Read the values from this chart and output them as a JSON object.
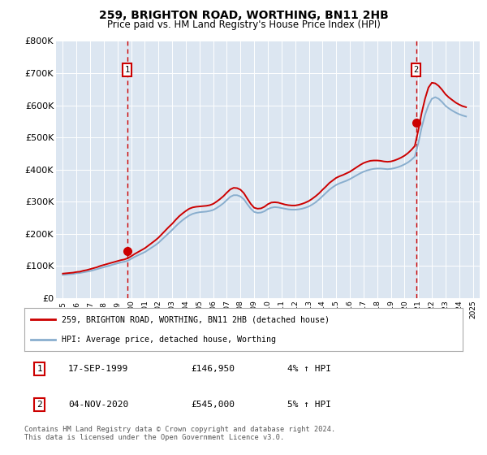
{
  "title": "259, BRIGHTON ROAD, WORTHING, BN11 2HB",
  "subtitle": "Price paid vs. HM Land Registry's House Price Index (HPI)",
  "background_color": "#dce6f1",
  "plot_bg_color": "#dce6f1",
  "red_line_color": "#cc0000",
  "blue_line_color": "#89aece",
  "marker_color": "#cc0000",
  "vline_color": "#cc0000",
  "ylim": [
    0,
    800000
  ],
  "yticks": [
    0,
    100000,
    200000,
    300000,
    400000,
    500000,
    600000,
    700000,
    800000
  ],
  "ytick_labels": [
    "£0",
    "£100K",
    "£200K",
    "£300K",
    "£400K",
    "£500K",
    "£600K",
    "£700K",
    "£800K"
  ],
  "xlim_start": 1994.5,
  "xlim_end": 2025.5,
  "marker1_x": 1999.71,
  "marker1_y": 146950,
  "marker1_label": "1",
  "marker1_date": "17-SEP-1999",
  "marker1_price": "£146,950",
  "marker1_hpi": "4% ↑ HPI",
  "marker2_x": 2020.84,
  "marker2_y": 545000,
  "marker2_label": "2",
  "marker2_date": "04-NOV-2020",
  "marker2_price": "£545,000",
  "marker2_hpi": "5% ↑ HPI",
  "legend_line1": "259, BRIGHTON ROAD, WORTHING, BN11 2HB (detached house)",
  "legend_line2": "HPI: Average price, detached house, Worthing",
  "footnote": "Contains HM Land Registry data © Crown copyright and database right 2024.\nThis data is licensed under the Open Government Licence v3.0.",
  "hpi_years": [
    1995.0,
    1995.25,
    1995.5,
    1995.75,
    1996.0,
    1996.25,
    1996.5,
    1996.75,
    1997.0,
    1997.25,
    1997.5,
    1997.75,
    1998.0,
    1998.25,
    1998.5,
    1998.75,
    1999.0,
    1999.25,
    1999.5,
    1999.75,
    2000.0,
    2000.25,
    2000.5,
    2000.75,
    2001.0,
    2001.25,
    2001.5,
    2001.75,
    2002.0,
    2002.25,
    2002.5,
    2002.75,
    2003.0,
    2003.25,
    2003.5,
    2003.75,
    2004.0,
    2004.25,
    2004.5,
    2004.75,
    2005.0,
    2005.25,
    2005.5,
    2005.75,
    2006.0,
    2006.25,
    2006.5,
    2006.75,
    2007.0,
    2007.25,
    2007.5,
    2007.75,
    2008.0,
    2008.25,
    2008.5,
    2008.75,
    2009.0,
    2009.25,
    2009.5,
    2009.75,
    2010.0,
    2010.25,
    2010.5,
    2010.75,
    2011.0,
    2011.25,
    2011.5,
    2011.75,
    2012.0,
    2012.25,
    2012.5,
    2012.75,
    2013.0,
    2013.25,
    2013.5,
    2013.75,
    2014.0,
    2014.25,
    2014.5,
    2014.75,
    2015.0,
    2015.25,
    2015.5,
    2015.75,
    2016.0,
    2016.25,
    2016.5,
    2016.75,
    2017.0,
    2017.25,
    2017.5,
    2017.75,
    2018.0,
    2018.25,
    2018.5,
    2018.75,
    2019.0,
    2019.25,
    2019.5,
    2019.75,
    2020.0,
    2020.25,
    2020.5,
    2020.75,
    2021.0,
    2021.25,
    2021.5,
    2021.75,
    2022.0,
    2022.25,
    2022.5,
    2022.75,
    2023.0,
    2023.25,
    2023.5,
    2023.75,
    2024.0,
    2024.25,
    2024.5
  ],
  "hpi_values": [
    72000,
    73000,
    74000,
    75000,
    77000,
    78000,
    80000,
    82000,
    84000,
    87000,
    90000,
    93000,
    96000,
    99000,
    102000,
    105000,
    108000,
    111000,
    113000,
    116000,
    122000,
    128000,
    133000,
    138000,
    143000,
    150000,
    157000,
    164000,
    172000,
    182000,
    192000,
    202000,
    212000,
    223000,
    233000,
    242000,
    250000,
    257000,
    262000,
    265000,
    267000,
    268000,
    269000,
    271000,
    274000,
    280000,
    287000,
    295000,
    305000,
    315000,
    320000,
    320000,
    316000,
    307000,
    292000,
    278000,
    268000,
    265000,
    266000,
    270000,
    277000,
    281000,
    283000,
    282000,
    280000,
    278000,
    276000,
    275000,
    275000,
    276000,
    278000,
    281000,
    285000,
    291000,
    298000,
    307000,
    317000,
    327000,
    337000,
    345000,
    352000,
    357000,
    361000,
    365000,
    370000,
    376000,
    382000,
    388000,
    393000,
    397000,
    400000,
    402000,
    403000,
    403000,
    402000,
    401000,
    402000,
    404000,
    407000,
    411000,
    416000,
    422000,
    430000,
    440000,
    480000,
    530000,
    570000,
    600000,
    620000,
    625000,
    620000,
    610000,
    598000,
    590000,
    583000,
    577000,
    572000,
    568000,
    565000
  ],
  "red_years": [
    1995.0,
    1995.25,
    1995.5,
    1995.75,
    1996.0,
    1996.25,
    1996.5,
    1996.75,
    1997.0,
    1997.25,
    1997.5,
    1997.75,
    1998.0,
    1998.25,
    1998.5,
    1998.75,
    1999.0,
    1999.25,
    1999.5,
    1999.75,
    2000.0,
    2000.25,
    2000.5,
    2000.75,
    2001.0,
    2001.25,
    2001.5,
    2001.75,
    2002.0,
    2002.25,
    2002.5,
    2002.75,
    2003.0,
    2003.25,
    2003.5,
    2003.75,
    2004.0,
    2004.25,
    2004.5,
    2004.75,
    2005.0,
    2005.25,
    2005.5,
    2005.75,
    2006.0,
    2006.25,
    2006.5,
    2006.75,
    2007.0,
    2007.25,
    2007.5,
    2007.75,
    2008.0,
    2008.25,
    2008.5,
    2008.75,
    2009.0,
    2009.25,
    2009.5,
    2009.75,
    2010.0,
    2010.25,
    2010.5,
    2010.75,
    2011.0,
    2011.25,
    2011.5,
    2011.75,
    2012.0,
    2012.25,
    2012.5,
    2012.75,
    2013.0,
    2013.25,
    2013.5,
    2013.75,
    2014.0,
    2014.25,
    2014.5,
    2014.75,
    2015.0,
    2015.25,
    2015.5,
    2015.75,
    2016.0,
    2016.25,
    2016.5,
    2016.75,
    2017.0,
    2017.25,
    2017.5,
    2017.75,
    2018.0,
    2018.25,
    2018.5,
    2018.75,
    2019.0,
    2019.25,
    2019.5,
    2019.75,
    2020.0,
    2020.25,
    2020.5,
    2020.75,
    2021.0,
    2021.25,
    2021.5,
    2021.75,
    2022.0,
    2022.25,
    2022.5,
    2022.75,
    2023.0,
    2023.25,
    2023.5,
    2023.75,
    2024.0,
    2024.25,
    2024.5
  ],
  "red_values": [
    76000,
    77000,
    78000,
    79000,
    81000,
    82000,
    85000,
    87000,
    90000,
    93000,
    96000,
    100000,
    103000,
    106000,
    109000,
    112000,
    115000,
    118000,
    120000,
    124000,
    130000,
    137000,
    143000,
    149000,
    155000,
    163000,
    171000,
    179000,
    188000,
    199000,
    210000,
    221000,
    231000,
    243000,
    254000,
    263000,
    271000,
    278000,
    282000,
    284000,
    285000,
    286000,
    287000,
    289000,
    293000,
    300000,
    308000,
    317000,
    328000,
    338000,
    343000,
    342000,
    337000,
    326000,
    309000,
    293000,
    281000,
    278000,
    279000,
    284000,
    292000,
    297000,
    298000,
    297000,
    294000,
    291000,
    289000,
    288000,
    288000,
    290000,
    293000,
    297000,
    302000,
    309000,
    317000,
    326000,
    337000,
    347000,
    358000,
    366000,
    374000,
    379000,
    383000,
    388000,
    393000,
    400000,
    407000,
    414000,
    420000,
    424000,
    427000,
    428000,
    428000,
    427000,
    425000,
    424000,
    425000,
    428000,
    432000,
    437000,
    443000,
    451000,
    461000,
    473000,
    520000,
    575000,
    620000,
    655000,
    670000,
    668000,
    660000,
    648000,
    634000,
    624000,
    616000,
    608000,
    602000,
    597000,
    594000
  ]
}
